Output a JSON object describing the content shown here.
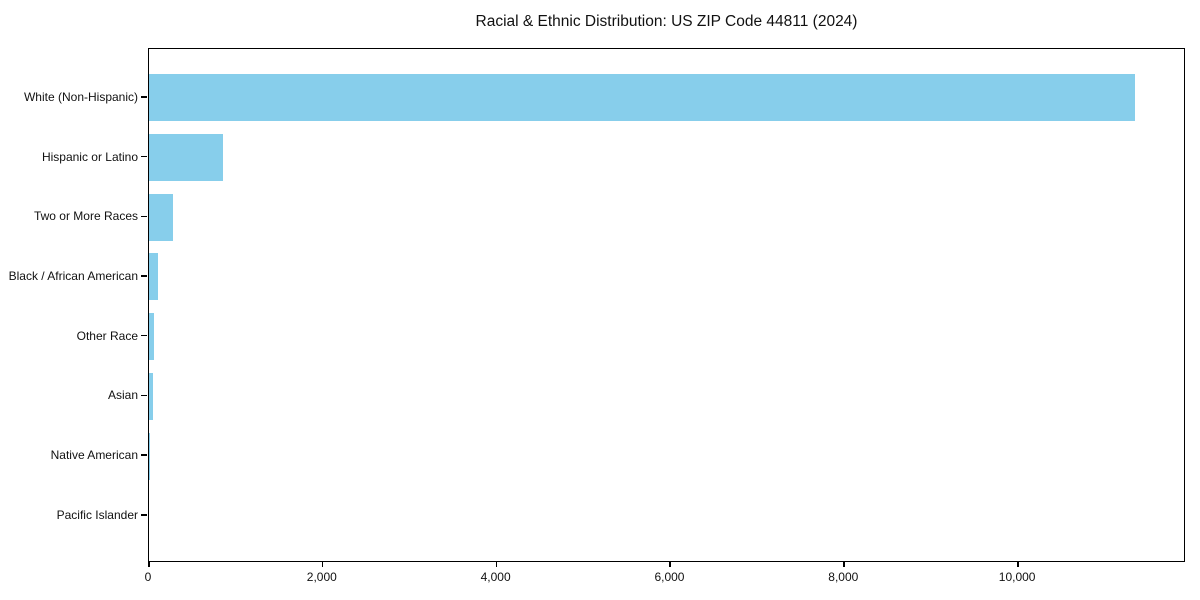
{
  "page": {
    "background_color": "#ffffff",
    "text_color": "#111111"
  },
  "chart_data": {
    "type": "bar",
    "orientation": "horizontal",
    "title": "Racial & Ethnic Distribution: US ZIP Code 44811 (2024)",
    "categories": [
      "White (Non-Hispanic)",
      "Hispanic or Latino",
      "Two or More Races",
      "Black / African American",
      "Other Race",
      "Asian",
      "Native American",
      "Pacific Islander"
    ],
    "values": [
      11360,
      850,
      275,
      100,
      55,
      45,
      10,
      0
    ],
    "bar_color": "#87CEEB",
    "xlabel": "",
    "ylabel": "",
    "xlim": [
      0,
      11920
    ],
    "xticks": [
      0,
      2000,
      4000,
      6000,
      8000,
      10000
    ],
    "xtick_labels": [
      "0",
      "2,000",
      "4,000",
      "6,000",
      "8,000",
      "10,000"
    ],
    "grid": "off",
    "legend": "none",
    "frame": "full-box"
  }
}
